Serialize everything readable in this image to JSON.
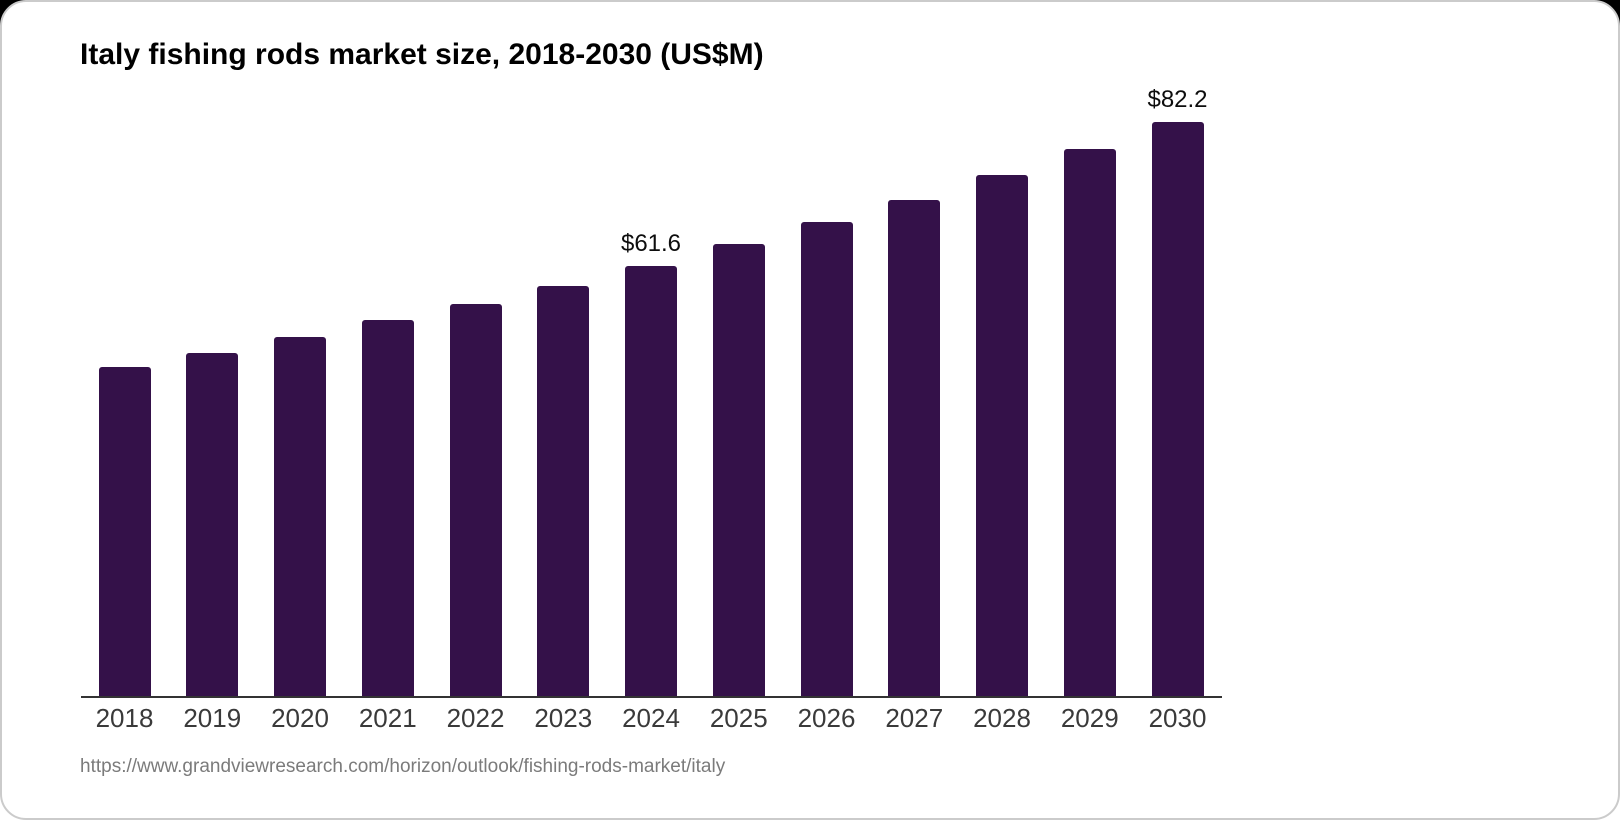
{
  "card": {
    "title": "Italy fishing rods market size, 2018-2030 (US$M)",
    "source_url": "https://www.grandviewresearch.com/horizon/outlook/fishing-rods-market/italy"
  },
  "chart_data": {
    "type": "bar",
    "title": "Italy fishing rods market size, 2018-2030 (US$M)",
    "categories": [
      "2018",
      "2019",
      "2020",
      "2021",
      "2022",
      "2023",
      "2024",
      "2025",
      "2026",
      "2027",
      "2028",
      "2029",
      "2030"
    ],
    "values": [
      47.1,
      49.2,
      51.5,
      53.8,
      56.2,
      58.8,
      61.6,
      64.7,
      67.9,
      71.1,
      74.6,
      78.3,
      82.2
    ],
    "point_labels": [
      "",
      "",
      "",
      "",
      "",
      "",
      "$61.6",
      "",
      "",
      "",
      "",
      "",
      "$82.2"
    ],
    "xlabel": "",
    "ylabel": "",
    "ylim": [
      0,
      85.1
    ],
    "grid": false,
    "legend": false,
    "bar_color": "#341149",
    "axis_color": "#333333",
    "tick_label_color": "#3a3a3a",
    "value_label_color": "#0d0d0d"
  }
}
